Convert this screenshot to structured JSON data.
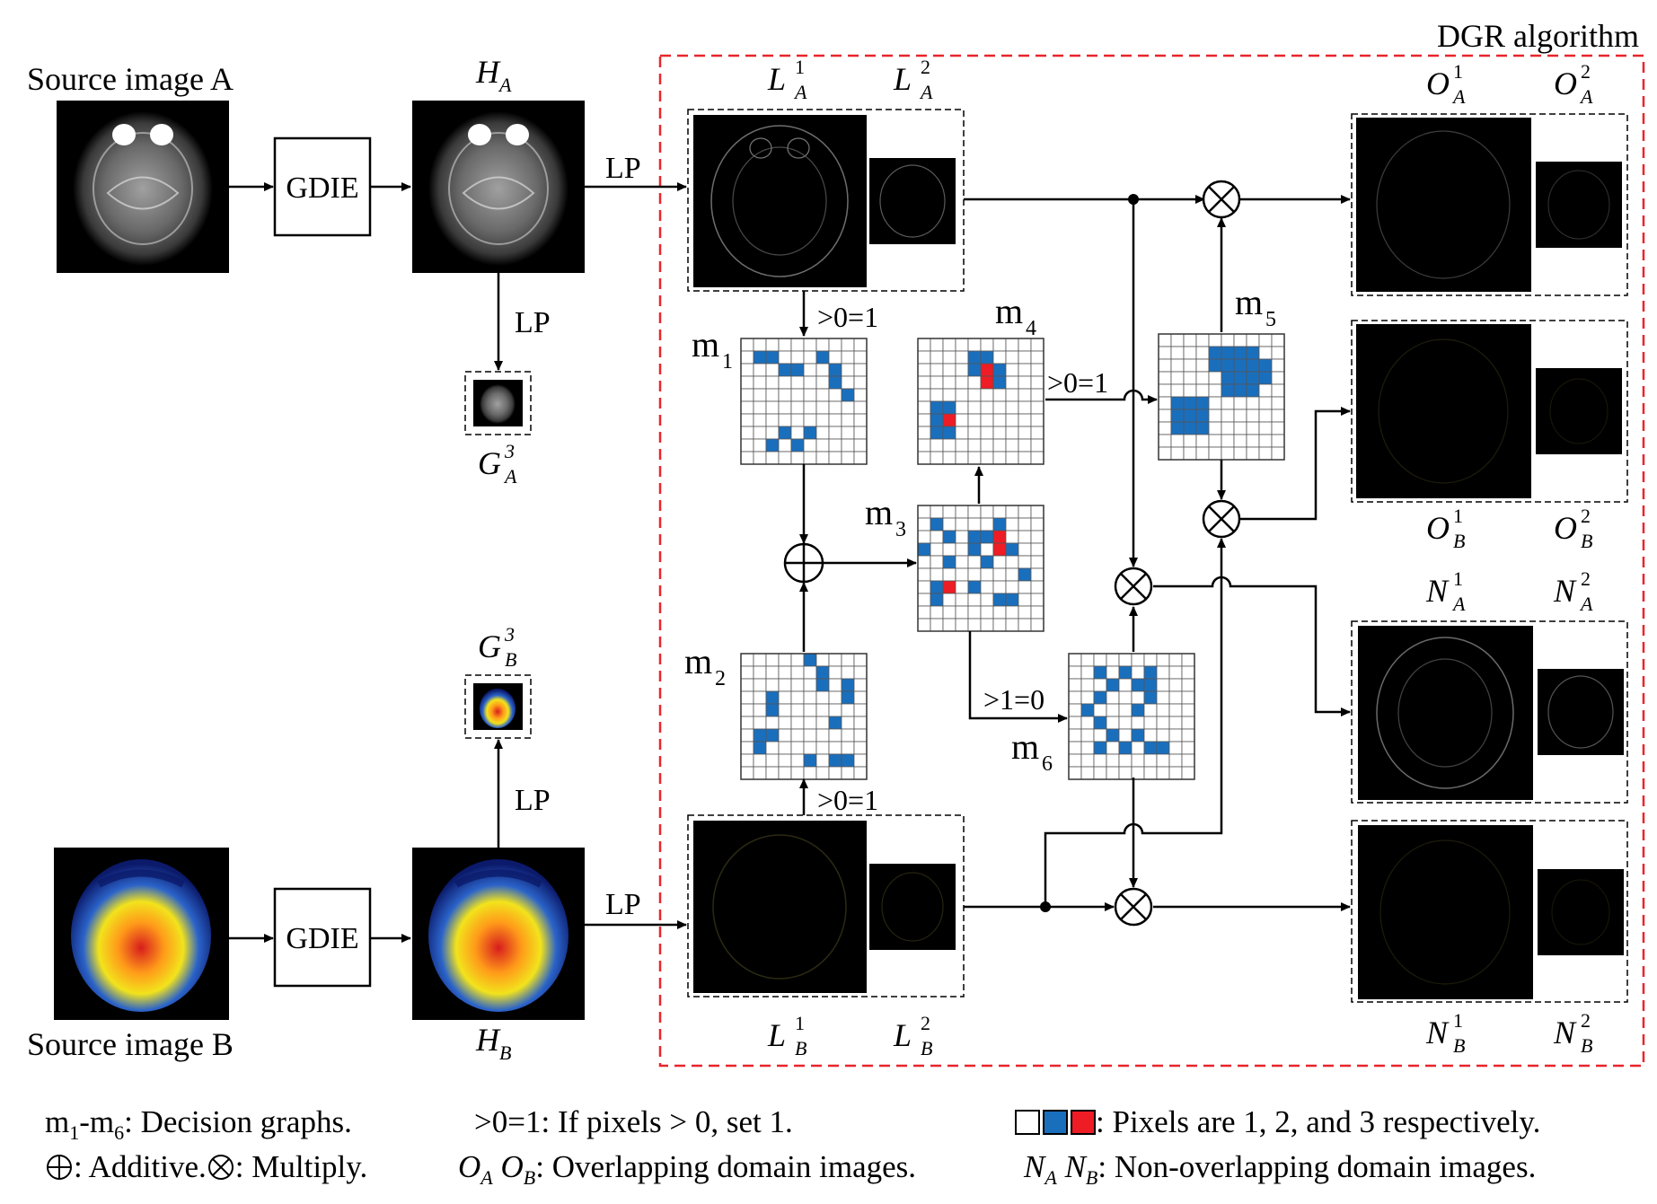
{
  "title": "DGR algorithm",
  "sources": {
    "a": "Source image A",
    "b": "Source image B"
  },
  "ops": {
    "gdie": "GDIE",
    "lp": "LP",
    "gt0": ">0=1",
    "gt1": ">1=0"
  },
  "images": {
    "ha": {
      "main": "H",
      "sub": "A"
    },
    "hb": {
      "main": "H",
      "sub": "B"
    },
    "ga3": {
      "main": "G",
      "sup": "3",
      "sub": "A"
    },
    "gb3": {
      "main": "G",
      "sup": "3",
      "sub": "B"
    },
    "la1": {
      "main": "L",
      "sup": "1",
      "sub": "A"
    },
    "la2": {
      "main": "L",
      "sup": "2",
      "sub": "A"
    },
    "lb1": {
      "main": "L",
      "sup": "1",
      "sub": "B"
    },
    "lb2": {
      "main": "L",
      "sup": "2",
      "sub": "B"
    },
    "oa1": {
      "main": "O",
      "sup": "1",
      "sub": "A"
    },
    "oa2": {
      "main": "O",
      "sup": "2",
      "sub": "A"
    },
    "ob1": {
      "main": "O",
      "sup": "1",
      "sub": "B"
    },
    "ob2": {
      "main": "O",
      "sup": "2",
      "sub": "B"
    },
    "na1": {
      "main": "N",
      "sup": "1",
      "sub": "A"
    },
    "na2": {
      "main": "N",
      "sup": "2",
      "sub": "A"
    },
    "nb1": {
      "main": "N",
      "sup": "1",
      "sub": "B"
    },
    "nb2": {
      "main": "N",
      "sup": "2",
      "sub": "B"
    }
  },
  "graphs": {
    "m1": {
      "main": "m",
      "sub": "1"
    },
    "m2": {
      "main": "m",
      "sub": "2"
    },
    "m3": {
      "main": "m",
      "sub": "3"
    },
    "m4": {
      "main": "m",
      "sub": "4"
    },
    "m5": {
      "main": "m",
      "sub": "5"
    },
    "m6": {
      "main": "m",
      "sub": "6"
    }
  },
  "colors": {
    "pixel_1": "#ffffff",
    "pixel_2": "#1a6fbd",
    "pixel_3": "#ee1c24",
    "dgr_border": "#e8262b"
  },
  "legend": {
    "m_range": {
      "a": "m",
      "a_sub": "1",
      "sep": "-m",
      "b_sub": "6",
      "text": ": Decision graphs."
    },
    "gt0": ">0=1: If pixels > 0, set 1.",
    "pixels": ": Pixels are 1, 2, and 3 respectively.",
    "additive": ": Additive.",
    "multiply": ": Multiply.",
    "overlap": {
      "a": "O",
      "a_sub": "A",
      "b": "O",
      "b_sub": "B",
      "text": ": Overlapping domain images."
    },
    "nonoverlap": {
      "a": "N",
      "a_sub": "A",
      "b": "N",
      "b_sub": "B",
      "text": ": Non-overlapping domain images."
    }
  }
}
